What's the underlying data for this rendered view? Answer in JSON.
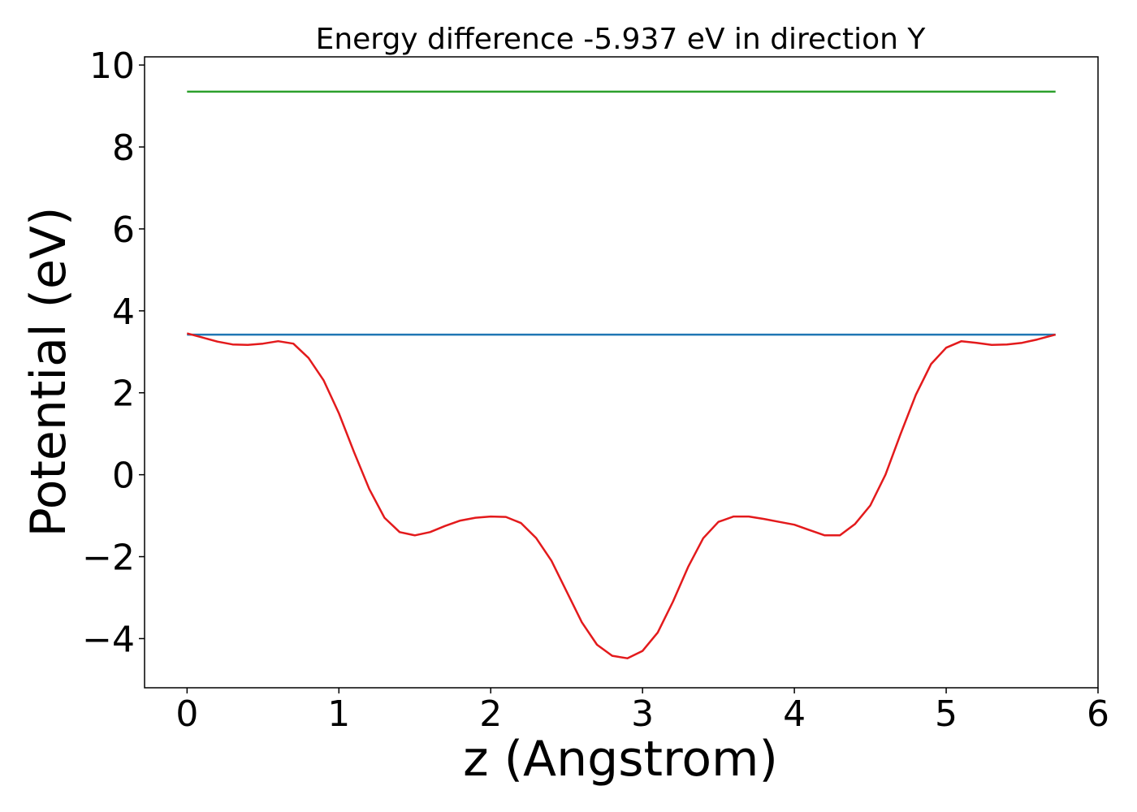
{
  "chart_data": {
    "type": "line",
    "title": "Energy difference -5.937 eV in direction Y",
    "xlabel": "z (Angstrom)",
    "ylabel": "Potential (eV)",
    "xlim": [
      -0.28,
      6.0
    ],
    "ylim": [
      -5.2,
      10.2
    ],
    "xticks": [
      0,
      1,
      2,
      3,
      4,
      5,
      6
    ],
    "yticks": [
      -4,
      -2,
      0,
      2,
      4,
      6,
      8,
      10
    ],
    "ytick_labels": [
      "−4",
      "−2",
      "0",
      "2",
      "4",
      "6",
      "8",
      "10"
    ],
    "grid": false,
    "legend": false,
    "series": [
      {
        "color": "#2ca02c",
        "x": [
          0.0,
          5.72
        ],
        "y": [
          9.35,
          9.35
        ]
      },
      {
        "color": "#1f77b4",
        "x": [
          0.0,
          5.72
        ],
        "y": [
          3.42,
          3.42
        ]
      },
      {
        "color": "#e31a1c",
        "x": [
          0.0,
          0.1,
          0.2,
          0.3,
          0.4,
          0.5,
          0.6,
          0.7,
          0.8,
          0.9,
          1.0,
          1.1,
          1.2,
          1.3,
          1.4,
          1.5,
          1.6,
          1.7,
          1.8,
          1.9,
          2.0,
          2.1,
          2.2,
          2.3,
          2.4,
          2.5,
          2.6,
          2.7,
          2.8,
          2.9,
          3.0,
          3.1,
          3.2,
          3.3,
          3.4,
          3.5,
          3.6,
          3.7,
          3.8,
          3.9,
          4.0,
          4.1,
          4.2,
          4.3,
          4.4,
          4.5,
          4.6,
          4.7,
          4.8,
          4.9,
          5.0,
          5.1,
          5.2,
          5.3,
          5.4,
          5.5,
          5.6,
          5.72
        ],
        "y": [
          3.45,
          3.35,
          3.25,
          3.18,
          3.17,
          3.2,
          3.26,
          3.2,
          2.85,
          2.3,
          1.5,
          0.55,
          -0.35,
          -1.05,
          -1.4,
          -1.48,
          -1.4,
          -1.25,
          -1.12,
          -1.05,
          -1.02,
          -1.03,
          -1.18,
          -1.55,
          -2.1,
          -2.85,
          -3.6,
          -4.15,
          -4.42,
          -4.48,
          -4.3,
          -3.85,
          -3.1,
          -2.25,
          -1.55,
          -1.15,
          -1.02,
          -1.02,
          -1.08,
          -1.15,
          -1.22,
          -1.35,
          -1.48,
          -1.48,
          -1.2,
          -0.75,
          0.0,
          1.0,
          1.95,
          2.7,
          3.1,
          3.26,
          3.22,
          3.17,
          3.18,
          3.22,
          3.3,
          3.42
        ]
      }
    ]
  }
}
